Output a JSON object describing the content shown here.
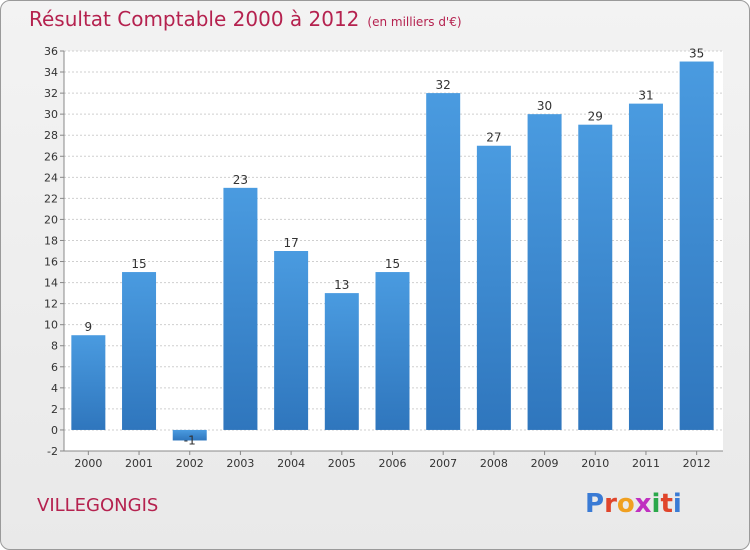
{
  "title": "Résultat Comptable 2000 à 2012",
  "subtitle": "(en milliers d'€)",
  "town": "VILLEGONGIS",
  "logo": {
    "letters": [
      "P",
      "r",
      "o",
      "x",
      "i",
      "t",
      "i"
    ],
    "colors": [
      "#3a7bd5",
      "#e0452b",
      "#f0a020",
      "#c030c0",
      "#2aa84a",
      "#e0452b",
      "#3a7bd5"
    ]
  },
  "colors": {
    "bar": "#4a9be0",
    "bar_dark": "#2f76bd",
    "title": "#b5224f"
  },
  "chart_data": {
    "type": "bar",
    "title": "Résultat Comptable 2000 à 2012",
    "ylabel": "en milliers d'€",
    "categories": [
      "2000",
      "2001",
      "2002",
      "2003",
      "2004",
      "2005",
      "2006",
      "2007",
      "2008",
      "2009",
      "2010",
      "2011",
      "2012"
    ],
    "values": [
      9,
      15,
      -1,
      23,
      17,
      13,
      15,
      32,
      27,
      30,
      29,
      31,
      35
    ],
    "ylim": [
      -2,
      36
    ],
    "yticks": [
      -2,
      0,
      2,
      4,
      6,
      8,
      10,
      12,
      14,
      16,
      18,
      20,
      22,
      24,
      26,
      28,
      30,
      32,
      34,
      36
    ],
    "grid": true
  }
}
